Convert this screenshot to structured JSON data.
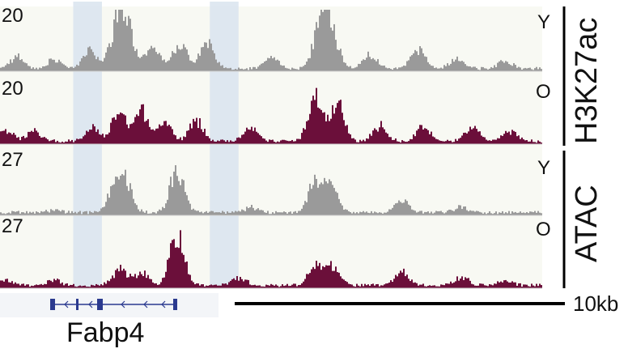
{
  "colors": {
    "young": "#9a9a9a",
    "old": "#6b0f3a",
    "highlight": "#d9e4ef",
    "gene": "#2b3a8f",
    "background": "#f8f9f3"
  },
  "tracks": [
    {
      "group": "H3K27ac",
      "condition": "Y",
      "scale_max": "20",
      "color": "young",
      "peaks": [
        [
          0.03,
          0.25
        ],
        [
          0.1,
          0.2
        ],
        [
          0.165,
          0.35
        ],
        [
          0.215,
          0.95
        ],
        [
          0.235,
          0.7
        ],
        [
          0.28,
          0.45
        ],
        [
          0.33,
          0.5
        ],
        [
          0.38,
          0.55
        ],
        [
          0.5,
          0.25
        ],
        [
          0.59,
          1.0
        ],
        [
          0.61,
          0.75
        ],
        [
          0.68,
          0.3
        ],
        [
          0.77,
          0.4
        ],
        [
          0.84,
          0.2
        ],
        [
          0.93,
          0.15
        ]
      ]
    },
    {
      "group": "H3K27ac",
      "condition": "O",
      "scale_max": "20",
      "color": "old",
      "peaks": [
        [
          0.01,
          0.2
        ],
        [
          0.06,
          0.2
        ],
        [
          0.17,
          0.25
        ],
        [
          0.22,
          0.65
        ],
        [
          0.26,
          0.55
        ],
        [
          0.3,
          0.4
        ],
        [
          0.36,
          0.4
        ],
        [
          0.46,
          0.25
        ],
        [
          0.58,
          0.8
        ],
        [
          0.62,
          0.75
        ],
        [
          0.7,
          0.3
        ],
        [
          0.78,
          0.3
        ],
        [
          0.87,
          0.25
        ],
        [
          0.94,
          0.2
        ]
      ]
    },
    {
      "group": "ATAC",
      "condition": "Y",
      "scale_max": "27",
      "color": "young",
      "peaks": [
        [
          0.1,
          0.05
        ],
        [
          0.21,
          0.45
        ],
        [
          0.23,
          0.55
        ],
        [
          0.325,
          0.85
        ],
        [
          0.46,
          0.1
        ],
        [
          0.58,
          0.6
        ],
        [
          0.61,
          0.55
        ],
        [
          0.74,
          0.25
        ],
        [
          0.85,
          0.1
        ]
      ]
    },
    {
      "group": "ATAC",
      "condition": "O",
      "scale_max": "27",
      "color": "old",
      "peaks": [
        [
          0.01,
          0.1
        ],
        [
          0.1,
          0.1
        ],
        [
          0.22,
          0.3
        ],
        [
          0.26,
          0.25
        ],
        [
          0.325,
          1.0
        ],
        [
          0.44,
          0.15
        ],
        [
          0.58,
          0.35
        ],
        [
          0.61,
          0.4
        ],
        [
          0.74,
          0.25
        ],
        [
          0.85,
          0.15
        ],
        [
          0.93,
          0.1
        ]
      ]
    }
  ],
  "highlight_regions": [
    [
      0.135,
      0.188
    ],
    [
      0.387,
      0.44
    ]
  ],
  "groups": [
    {
      "name": "H3K27ac"
    },
    {
      "name": "ATAC"
    }
  ],
  "gene": {
    "name": "Fabp4"
  },
  "scale_bar": {
    "label": "10kb"
  }
}
